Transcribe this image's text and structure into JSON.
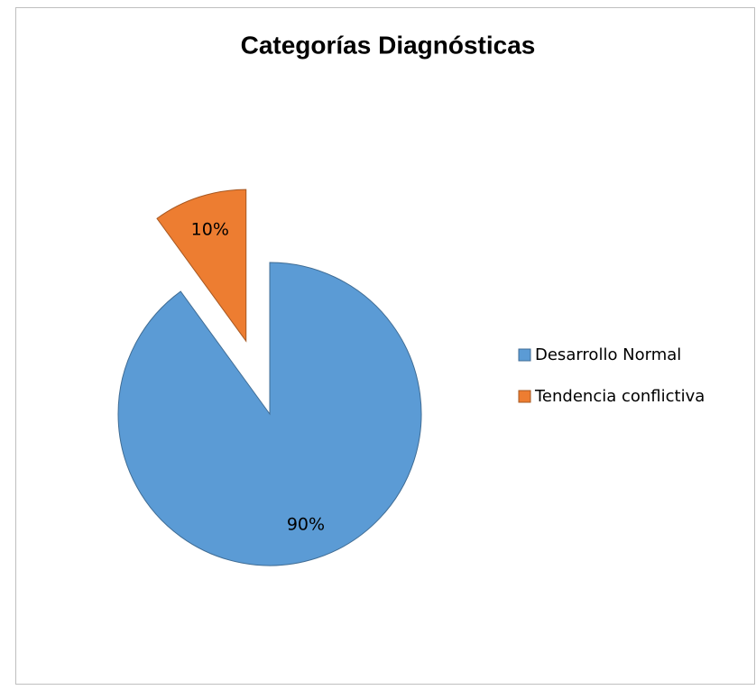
{
  "chart_data": {
    "type": "pie",
    "title": "Categorías Diagnósticas",
    "categories": [
      "Desarrollo Normal",
      "Tendencia conflictiva"
    ],
    "values": [
      90,
      10
    ],
    "value_labels": [
      "90%",
      "10%"
    ],
    "colors": [
      "#5b9bd5",
      "#ed7d31"
    ],
    "legend": "right"
  }
}
